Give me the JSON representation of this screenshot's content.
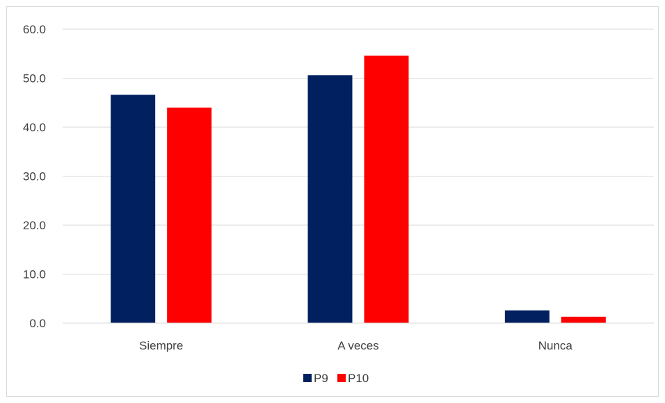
{
  "chart_data": {
    "type": "bar",
    "title": "",
    "xlabel": "",
    "ylabel": "",
    "categories": [
      "Siempre",
      "A veces",
      "Nunca"
    ],
    "series": [
      {
        "name": "P9",
        "color": "#002060",
        "values": [
          46.6,
          50.6,
          2.6
        ]
      },
      {
        "name": "P10",
        "color": "#ff0000",
        "values": [
          44.0,
          54.6,
          1.3
        ]
      }
    ],
    "ylim": [
      0,
      60
    ],
    "yticks": [
      "0.0",
      "10.0",
      "20.0",
      "30.0",
      "40.0",
      "50.0",
      "60.0"
    ],
    "grid": true,
    "legend_position": "bottom"
  }
}
